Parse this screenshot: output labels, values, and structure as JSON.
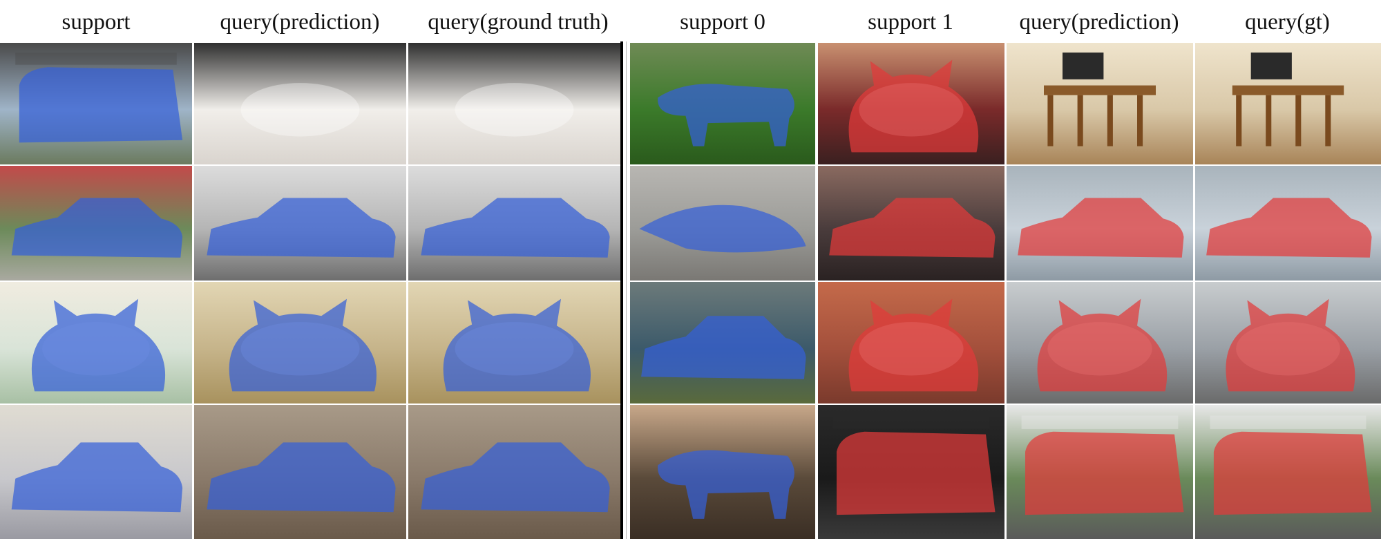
{
  "left_panel": {
    "headers": [
      "support",
      "query(prediction)",
      "query(ground truth)"
    ]
  },
  "right_panel": {
    "headers": [
      "support 0",
      "support 1",
      "query(prediction)",
      "query(gt)"
    ]
  },
  "colors": {
    "mask_blue": "#3560d8",
    "mask_red": "#e23a3a"
  },
  "rows": [
    {
      "left": [
        {
          "scene": "bus",
          "icon": "bus-icon",
          "mask": "blue"
        },
        {
          "scene": "cat-closeup",
          "icon": "cat-icon",
          "mask": "none"
        },
        {
          "scene": "cat-closeup",
          "icon": "cat-icon",
          "mask": "none"
        }
      ],
      "right": [
        {
          "scene": "cow-field",
          "icon": "cow-icon",
          "mask": "blue"
        },
        {
          "scene": "dog-and-cat",
          "icon": "cat-icon",
          "mask": "red"
        },
        {
          "scene": "dining-chairs",
          "icon": "chair-icon",
          "mask": "none"
        },
        {
          "scene": "dining-chairs",
          "icon": "chair-icon",
          "mask": "none"
        }
      ]
    },
    {
      "left": [
        {
          "scene": "car-ramp-truck",
          "icon": "car-icon",
          "mask": "blue"
        },
        {
          "scene": "car-showroom",
          "icon": "car-icon",
          "mask": "blue"
        },
        {
          "scene": "car-showroom",
          "icon": "car-icon",
          "mask": "blue"
        }
      ],
      "right": [
        {
          "scene": "crocodile-shoes",
          "icon": "animal-icon",
          "mask": "blue"
        },
        {
          "scene": "red-sports-car",
          "icon": "car-icon",
          "mask": "red"
        },
        {
          "scene": "car-harbor",
          "icon": "car-icon",
          "mask": "red"
        },
        {
          "scene": "car-harbor",
          "icon": "car-icon",
          "mask": "red"
        }
      ]
    },
    {
      "left": [
        {
          "scene": "cat-window-sill",
          "icon": "cat-icon",
          "mask": "blue"
        },
        {
          "scene": "cat-in-box",
          "icon": "cat-icon",
          "mask": "blue"
        },
        {
          "scene": "cat-in-box",
          "icon": "cat-icon",
          "mask": "blue"
        }
      ],
      "right": [
        {
          "scene": "overturned-car-water",
          "icon": "car-icon",
          "mask": "blue"
        },
        {
          "scene": "cat-brick-wall",
          "icon": "cat-icon",
          "mask": "red"
        },
        {
          "scene": "cat-street",
          "icon": "cat-icon",
          "mask": "red"
        },
        {
          "scene": "cat-street",
          "icon": "cat-icon",
          "mask": "red"
        }
      ]
    },
    {
      "left": [
        {
          "scene": "vintage-car",
          "icon": "car-icon",
          "mask": "blue"
        },
        {
          "scene": "rally-car",
          "icon": "car-icon",
          "mask": "blue"
        },
        {
          "scene": "rally-car",
          "icon": "car-icon",
          "mask": "blue"
        }
      ],
      "right": [
        {
          "scene": "cow-and-girl",
          "icon": "cow-icon",
          "mask": "blue"
        },
        {
          "scene": "red-bus-night",
          "icon": "bus-icon",
          "mask": "red"
        },
        {
          "scene": "double-decker-bus",
          "icon": "bus-icon",
          "mask": "red"
        },
        {
          "scene": "double-decker-bus",
          "icon": "bus-icon",
          "mask": "red"
        }
      ]
    }
  ]
}
